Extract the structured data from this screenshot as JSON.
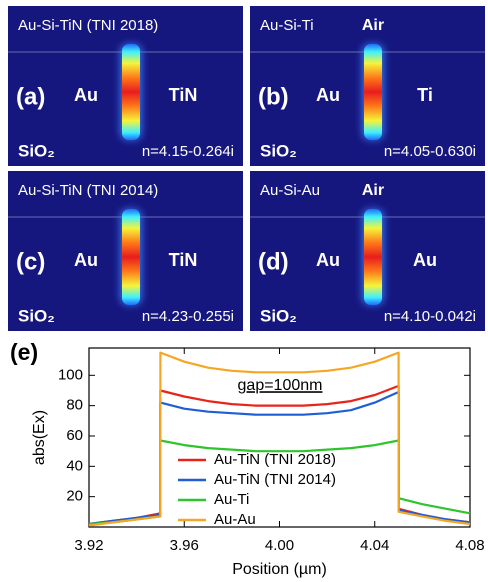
{
  "panels": [
    {
      "title": "Au-Si-TiN (TNI 2018)",
      "label": "(a)",
      "left": "Au",
      "right": "TiN",
      "substrate": "SiO₂",
      "index": "n=4.15-0.264i"
    },
    {
      "title": "Au-Si-Ti",
      "label": "(b)",
      "top": "Air",
      "left": "Au",
      "right": "Ti",
      "substrate": "SiO₂",
      "index": "n=4.05-0.630i"
    },
    {
      "title": "Au-Si-TiN (TNI 2014)",
      "label": "(c)",
      "left": "Au",
      "right": "TiN",
      "substrate": "SiO₂",
      "index": "n=4.23-0.255i"
    },
    {
      "title": "Au-Si-Au",
      "label": "(d)",
      "top": "Air",
      "left": "Au",
      "right": "Au",
      "substrate": "SiO₂",
      "index": "n=4.10-0.042i"
    }
  ],
  "chart_data": {
    "type": "line",
    "label": "(e)",
    "annotation": "gap=100nm",
    "xlabel": "Position (µm)",
    "ylabel": "abs(Ex)",
    "x": [
      3.92,
      3.93,
      3.94,
      3.95,
      3.95,
      3.96,
      3.97,
      3.98,
      3.99,
      4.0,
      4.01,
      4.02,
      4.03,
      4.04,
      4.05,
      4.05,
      4.06,
      4.07,
      4.08
    ],
    "xlim": [
      3.92,
      4.08
    ],
    "xticks": [
      3.92,
      3.96,
      {
        "value": 4.0,
        "label": "4.00"
      },
      4.04,
      4.08
    ],
    "ylim": [
      0,
      118
    ],
    "yticks": [
      20,
      40,
      60,
      80,
      100
    ],
    "series": [
      {
        "name": "Au-TiN (TNI 2018)",
        "color": "#e8241a",
        "values": [
          2,
          4,
          6,
          9,
          90,
          86,
          83,
          81,
          80,
          80,
          80,
          81,
          83,
          87,
          93,
          12,
          8,
          5,
          3
        ]
      },
      {
        "name": "Au-TiN (TNI 2014)",
        "color": "#1f5fd6",
        "values": [
          2,
          4,
          6,
          8,
          82,
          78,
          76,
          75,
          74,
          74,
          74,
          75,
          77,
          82,
          89,
          11,
          8,
          5,
          3
        ]
      },
      {
        "name": "Au-Ti",
        "color": "#2ec42e",
        "values": [
          2,
          3,
          5,
          7,
          57,
          54,
          52,
          51,
          50,
          50,
          50,
          51,
          52,
          54,
          57,
          19,
          15,
          12,
          9
        ]
      },
      {
        "name": "Au-Au",
        "color": "#f5a623",
        "values": [
          1,
          3,
          5,
          7,
          115,
          109,
          105,
          103,
          102,
          102,
          102,
          103,
          105,
          109,
          115,
          10,
          7,
          4,
          2
        ]
      }
    ]
  }
}
